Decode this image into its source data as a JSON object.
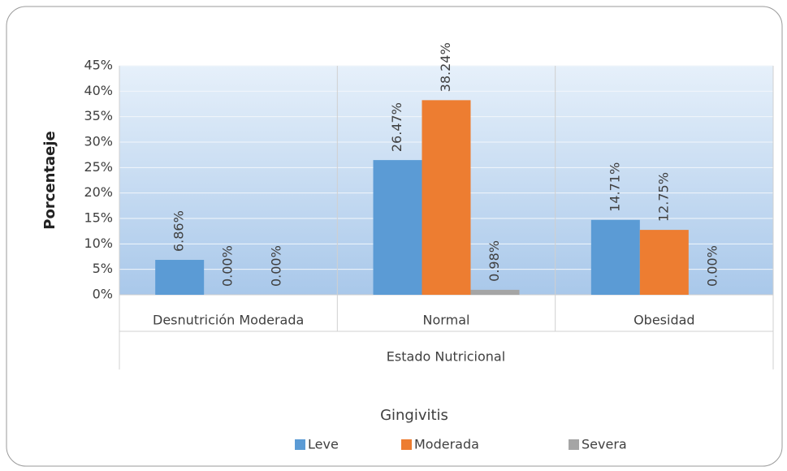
{
  "chart_data": {
    "type": "bar",
    "xlabel": "Estado Nutricional",
    "ylabel": "Porcentaeje",
    "legend_title": "Gingivitis",
    "legend": "bottom",
    "grid": true,
    "categories": [
      "Desnutrición Moderada",
      "Normal",
      "Obesidad"
    ],
    "series": [
      {
        "name": "Leve",
        "color": "#5b9bd5",
        "values": [
          6.86,
          26.47,
          14.71
        ],
        "value_labels": [
          "6.86%",
          "26.47%",
          "14.71%"
        ]
      },
      {
        "name": "Moderada",
        "color": "#ed7d31",
        "values": [
          0,
          38.24,
          12.75
        ],
        "value_labels": [
          "0.00%",
          "38.24%",
          "12.75%"
        ]
      },
      {
        "name": "Severa",
        "color": "#a5a5a5",
        "values": [
          0,
          0.98,
          0
        ],
        "value_labels": [
          "0.00%",
          "0.98%",
          "0.00%"
        ]
      }
    ],
    "ylim": [
      0,
      45
    ],
    "yticks": [
      {
        "value": 0,
        "label": "0%"
      },
      {
        "value": 5,
        "label": "5%"
      },
      {
        "value": 10,
        "label": "10%"
      },
      {
        "value": 15,
        "label": "15%"
      },
      {
        "value": 20,
        "label": "20%"
      },
      {
        "value": 25,
        "label": "25%"
      },
      {
        "value": 30,
        "label": "30%"
      },
      {
        "value": 35,
        "label": "35%"
      },
      {
        "value": 40,
        "label": "40%"
      },
      {
        "value": 45,
        "label": "45%"
      }
    ]
  }
}
